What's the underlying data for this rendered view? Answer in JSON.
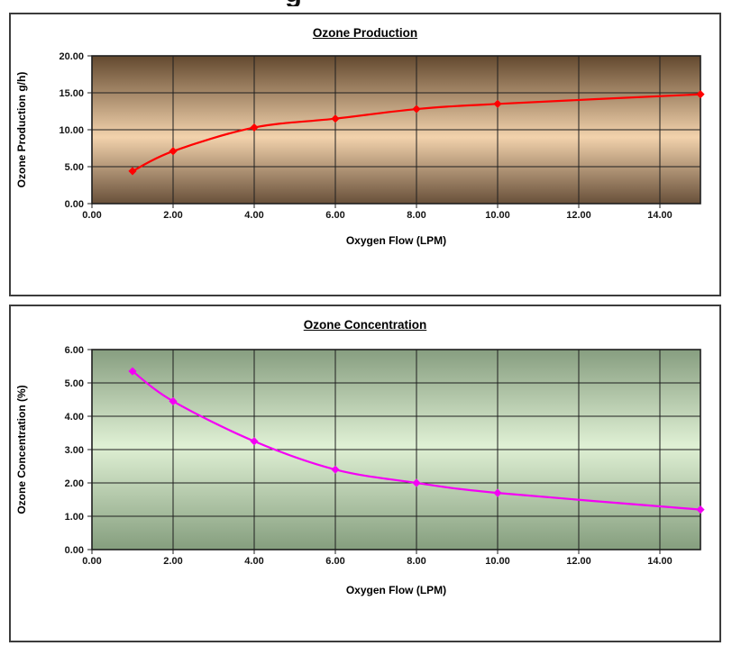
{
  "page": {
    "clipped_heading_fragment": "g"
  },
  "chart_data": [
    {
      "type": "line",
      "title": "Ozone Production",
      "xlabel": "Oxygen Flow (LPM)",
      "ylabel": "Ozone Production g/h)",
      "x": [
        1,
        2,
        4,
        6,
        8,
        10,
        15
      ],
      "y": [
        4.4,
        7.1,
        10.3,
        11.5,
        12.8,
        13.5,
        14.8
      ],
      "xlim": [
        0,
        15
      ],
      "ylim": [
        0,
        20
      ],
      "xticks": [
        0,
        2,
        4,
        6,
        8,
        10,
        12,
        14
      ],
      "yticks": [
        0,
        5,
        10,
        15,
        20
      ],
      "tick_decimals": 2,
      "grid": true,
      "legend": "none",
      "line_color": "#ff0000",
      "marker": "diamond",
      "plot_bg_gradient": {
        "stops": [
          "#63492f",
          "#f2d2ac",
          "#68503a"
        ],
        "positions": [
          0,
          0.55,
          1
        ]
      }
    },
    {
      "type": "line",
      "title": "Ozone Concentration",
      "xlabel": "Oxygen Flow (LPM)",
      "ylabel": "Ozone Concentration (%)",
      "x": [
        1,
        2,
        4,
        6,
        8,
        10,
        15
      ],
      "y": [
        5.35,
        4.45,
        3.25,
        2.4,
        2.0,
        1.7,
        1.2
      ],
      "xlim": [
        0,
        15
      ],
      "ylim": [
        0,
        6
      ],
      "xticks": [
        0,
        2,
        4,
        6,
        8,
        10,
        12,
        14
      ],
      "yticks": [
        0,
        1,
        2,
        3,
        4,
        5,
        6
      ],
      "tick_decimals": 2,
      "grid": true,
      "legend": "none",
      "line_color": "#f400f4",
      "marker": "diamond",
      "plot_bg_gradient": {
        "stops": [
          "#879e80",
          "#dff0d4",
          "#859e7e"
        ],
        "positions": [
          0,
          0.48,
          1
        ]
      }
    }
  ]
}
